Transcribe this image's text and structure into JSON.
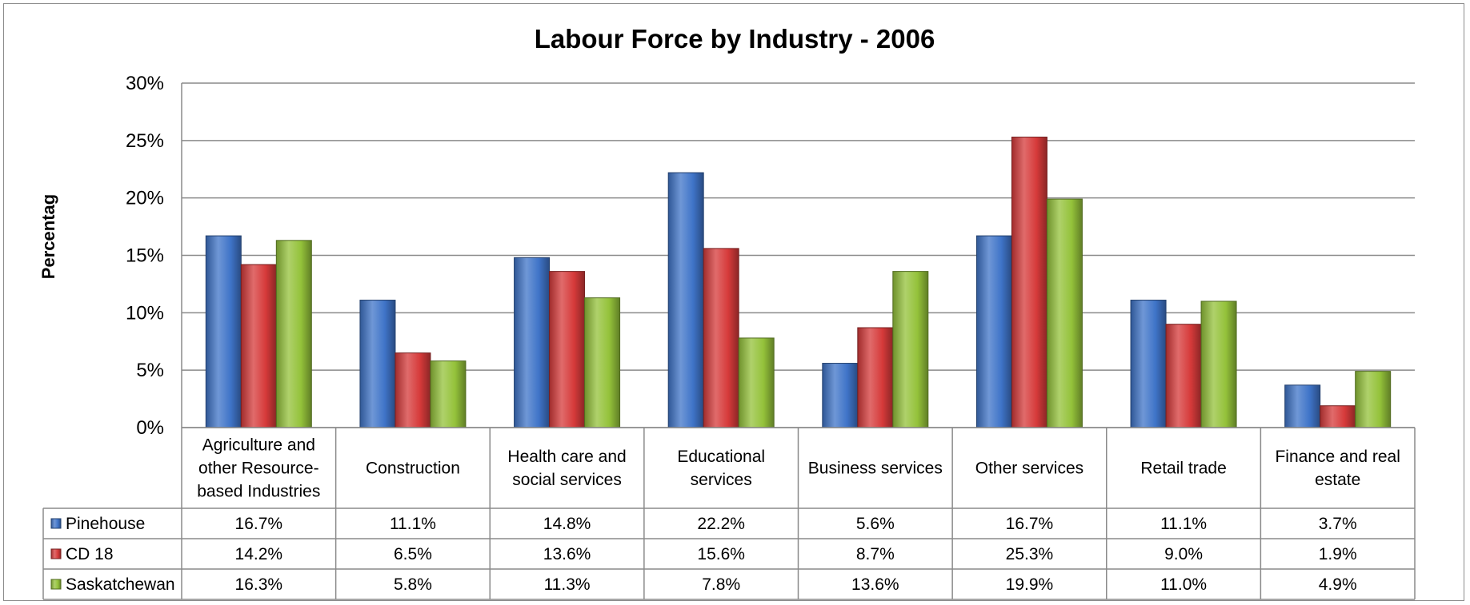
{
  "chart_data": {
    "type": "bar",
    "title": "Labour Force by Industry - 2006",
    "ylabel": "Percentag",
    "ylim": [
      0,
      30
    ],
    "yticks": [
      "0%",
      "5%",
      "10%",
      "15%",
      "20%",
      "25%",
      "30%"
    ],
    "ytick_values": [
      0,
      5,
      10,
      15,
      20,
      25,
      30
    ],
    "grid": true,
    "legend": "data-table",
    "categories": [
      "Agriculture and other Resource-based Industries",
      "Construction",
      "Health care and social services",
      "Educational services",
      "Business services",
      "Other services",
      "Retail trade",
      "Finance and real estate"
    ],
    "category_lines": [
      [
        "Agriculture and",
        "other Resource-",
        "based Industries"
      ],
      [
        "Construction"
      ],
      [
        "Health care and",
        "social services"
      ],
      [
        "Educational",
        "services"
      ],
      [
        "Business services"
      ],
      [
        "Other services"
      ],
      [
        "Retail trade"
      ],
      [
        "Finance and real",
        "estate"
      ]
    ],
    "series": [
      {
        "name": "Pinehouse",
        "color": "#3f74c8",
        "values": [
          16.7,
          11.1,
          14.8,
          22.2,
          5.6,
          16.7,
          11.1,
          3.7
        ],
        "labels": [
          "16.7%",
          "11.1%",
          "14.8%",
          "22.2%",
          "5.6%",
          "16.7%",
          "11.1%",
          "3.7%"
        ]
      },
      {
        "name": "CD 18",
        "color": "#d63a3a",
        "values": [
          14.2,
          6.5,
          13.6,
          15.6,
          8.7,
          25.3,
          9.0,
          1.9
        ],
        "labels": [
          "14.2%",
          "6.5%",
          "13.6%",
          "15.6%",
          "8.7%",
          "25.3%",
          "9.0%",
          "1.9%"
        ]
      },
      {
        "name": "Saskatchewan",
        "color": "#94c23a",
        "values": [
          16.3,
          5.8,
          11.3,
          7.8,
          13.6,
          19.9,
          11.0,
          4.9
        ],
        "labels": [
          "16.3%",
          "5.8%",
          "11.3%",
          "7.8%",
          "13.6%",
          "19.9%",
          "11.0%",
          "4.9%"
        ]
      }
    ]
  }
}
